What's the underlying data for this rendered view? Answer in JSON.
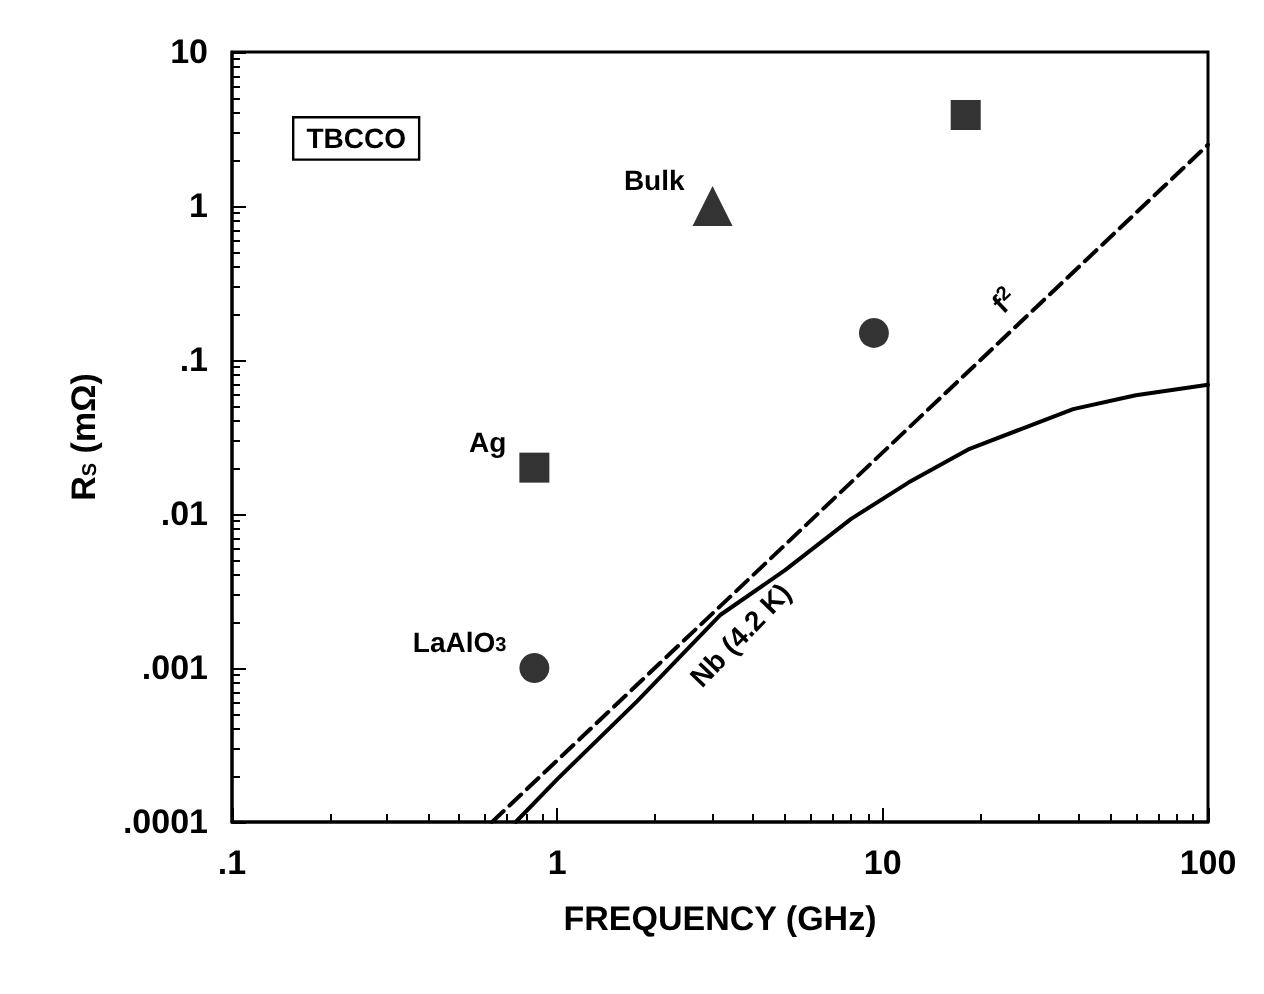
{
  "chart_data": {
    "type": "scatter",
    "xlabel": "FREQUENCY (GHz)",
    "ylabel": "R$_{S}$ (mΩ)",
    "log": "xy",
    "grid": false,
    "xlim": [
      0.1,
      100
    ],
    "xticks": [
      {
        "value": 0.1,
        "label": ".1"
      },
      1,
      10,
      100
    ],
    "ylim": [
      0.0001,
      10
    ],
    "yticks": [
      {
        "value": 0.0001,
        "label": ".0001"
      },
      {
        "value": 0.001,
        "label": ".001"
      },
      {
        "value": 0.01,
        "label": ".01"
      },
      {
        "value": 0.1,
        "label": ".1"
      },
      1,
      10
    ],
    "series": [
      {
        "marker": "square",
        "color": "#000000",
        "x": [
          0.85,
          18
        ],
        "values": [
          0.02,
          3.9
        ]
      },
      {
        "marker": "triangle",
        "color": "#000000",
        "x": [
          3
        ],
        "values": [
          1
        ]
      },
      {
        "marker": "circle",
        "color": "#000000",
        "x": [
          0.85,
          9.4
        ],
        "values": [
          0.001,
          0.15
        ]
      },
      {
        "type": "line",
        "line_style": "dashed",
        "marker": "none",
        "color": "#000000",
        "x": [
          0.63,
          100
        ],
        "values": [
          0.0001,
          2.5
        ]
      },
      {
        "type": "line",
        "line_style": "solid",
        "marker": "none",
        "color": "#000000",
        "x": [
          0.745,
          1,
          1.76,
          3.16,
          5,
          8,
          12,
          18.5,
          27,
          38.5,
          60,
          100
        ],
        "values": [
          0.0001,
          0.00019,
          0.00061,
          0.0022,
          0.0043,
          0.0093,
          0.016,
          0.0265,
          0.036,
          0.048,
          0.059,
          0.069
        ]
      }
    ],
    "annotations": [
      "TBCCO",
      {
        "text": "Bulk",
        "x": 3,
        "y": 1
      },
      {
        "text": "Ag",
        "x": 0.85,
        "y": 0.02
      },
      {
        "text": "LaAlO$_{3}$",
        "x": 0.85,
        "y": 0.001
      },
      {
        "text": "f$^{2}$",
        "x": 27,
        "y": 0.18
      },
      {
        "text": "Nb (4.2 K)",
        "x": 3.16,
        "y": 0.0022
      }
    ]
  }
}
